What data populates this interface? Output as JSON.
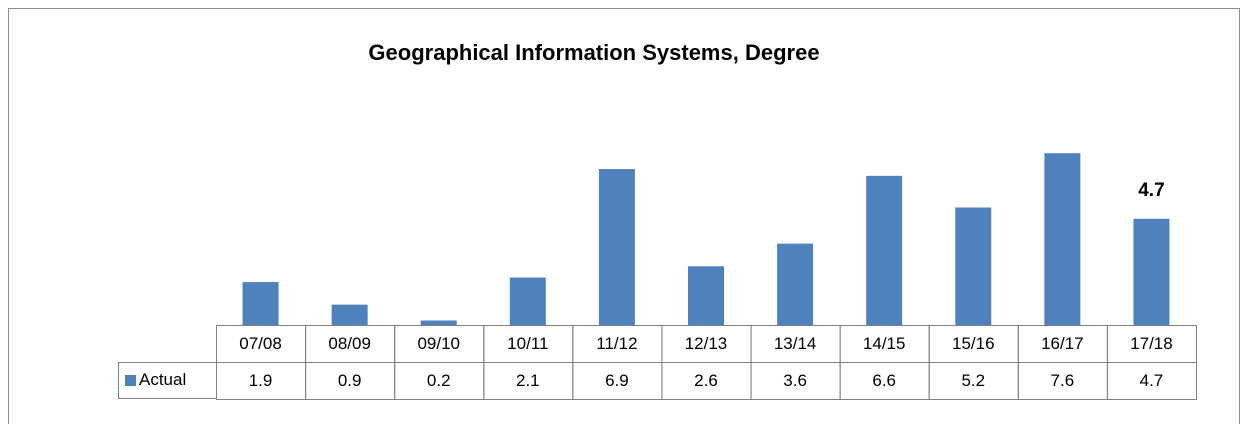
{
  "chart_data": {
    "type": "bar",
    "title": "Geographical Information Systems, Degree",
    "categories": [
      "07/08",
      "08/09",
      "09/10",
      "10/11",
      "11/12",
      "12/13",
      "13/14",
      "14/15",
      "15/16",
      "16/17",
      "17/18"
    ],
    "series": [
      {
        "name": "Actual",
        "color": "#4f81bd",
        "values": [
          1.9,
          0.9,
          0.2,
          2.1,
          6.9,
          2.6,
          3.6,
          6.6,
          5.2,
          7.6,
          4.7
        ]
      }
    ]
  }
}
